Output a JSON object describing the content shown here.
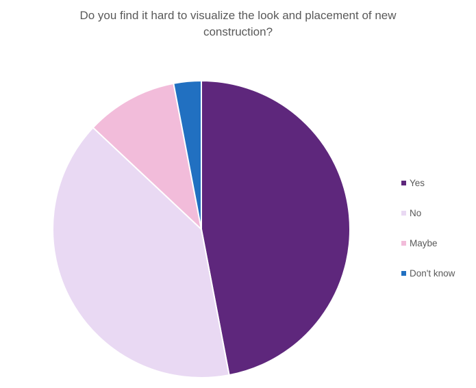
{
  "chart_data": {
    "type": "pie",
    "title": "Do you find it hard to visualize the look and placement of new\nconstruction?",
    "categories": [
      "Yes",
      "No",
      "Maybe",
      "Don't know"
    ],
    "values": [
      47,
      40,
      10,
      3
    ],
    "colors": [
      "#5E277C",
      "#E9D9F3",
      "#F2BCDA",
      "#2170C1"
    ],
    "legend": "right",
    "slice_border_color": "#ffffff"
  }
}
